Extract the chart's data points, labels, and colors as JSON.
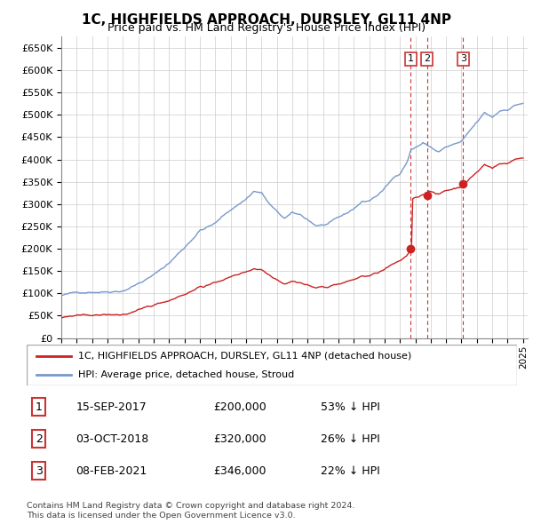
{
  "title": "1C, HIGHFIELDS APPROACH, DURSLEY, GL11 4NP",
  "subtitle": "Price paid vs. HM Land Registry's House Price Index (HPI)",
  "ytick_values": [
    0,
    50000,
    100000,
    150000,
    200000,
    250000,
    300000,
    350000,
    400000,
    450000,
    500000,
    550000,
    600000,
    650000
  ],
  "legend_line1": "1C, HIGHFIELDS APPROACH, DURSLEY, GL11 4NP (detached house)",
  "legend_line2": "HPI: Average price, detached house, Stroud",
  "transactions": [
    {
      "num": 1,
      "date": "15-SEP-2017",
      "price": "£200,000",
      "pct": "53% ↓ HPI",
      "year": 2017.71
    },
    {
      "num": 2,
      "date": "03-OCT-2018",
      "price": "£320,000",
      "pct": "26% ↓ HPI",
      "year": 2018.75
    },
    {
      "num": 3,
      "date": "08-FEB-2021",
      "price": "£346,000",
      "pct": "22% ↓ HPI",
      "year": 2021.1
    }
  ],
  "sale_prices": [
    200000,
    320000,
    346000
  ],
  "sale_years": [
    2017.71,
    2018.75,
    2021.1
  ],
  "footer": "Contains HM Land Registry data © Crown copyright and database right 2024.\nThis data is licensed under the Open Government Licence v3.0.",
  "hpi_color": "#7799cc",
  "price_color": "#cc2222",
  "vline_color": "#cc3333",
  "background_color": "#ffffff",
  "grid_color": "#cccccc"
}
